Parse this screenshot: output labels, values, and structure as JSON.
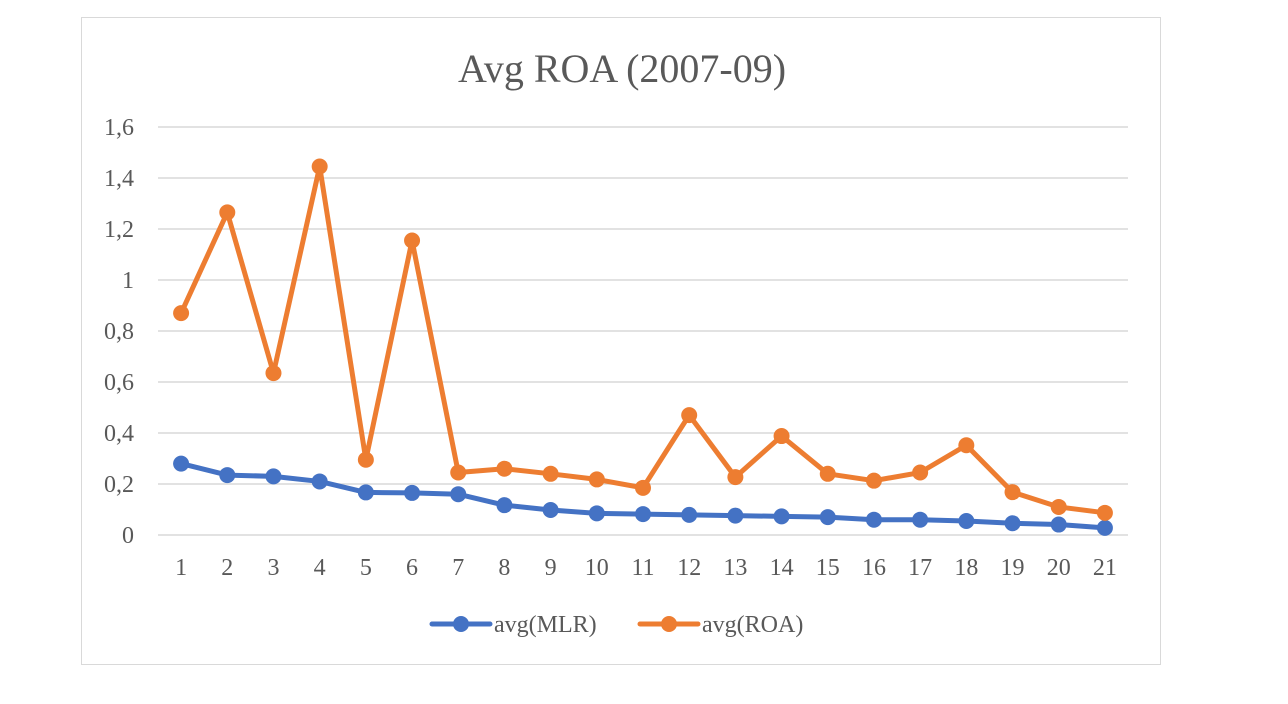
{
  "chart_data": {
    "type": "line",
    "title": "Avg ROA (2007-09)",
    "xlabel": "",
    "ylabel": "",
    "x": [
      "1",
      "2",
      "3",
      "4",
      "5",
      "6",
      "7",
      "8",
      "9",
      "10",
      "11",
      "12",
      "13",
      "14",
      "15",
      "16",
      "17",
      "18",
      "19",
      "20",
      "21"
    ],
    "y_ticks": [
      "0",
      "0,2",
      "0,4",
      "0,6",
      "0,8",
      "1",
      "1,2",
      "1,4",
      "1,6"
    ],
    "ylim": [
      0,
      1.6
    ],
    "grid": true,
    "legend_position": "bottom",
    "series": [
      {
        "name": "avg(MLR)",
        "color": "#4472c4",
        "values": [
          0.28,
          0.235,
          0.23,
          0.21,
          0.167,
          0.165,
          0.16,
          0.117,
          0.098,
          0.085,
          0.082,
          0.079,
          0.076,
          0.073,
          0.07,
          0.06,
          0.06,
          0.055,
          0.046,
          0.041,
          0.028
        ]
      },
      {
        "name": "avg(ROA)",
        "color": "#ed7d31",
        "values": [
          0.87,
          1.265,
          0.635,
          1.445,
          0.295,
          1.155,
          0.245,
          0.26,
          0.24,
          0.218,
          0.185,
          0.47,
          0.227,
          0.388,
          0.24,
          0.213,
          0.245,
          0.352,
          0.168,
          0.11,
          0.087
        ]
      }
    ]
  }
}
